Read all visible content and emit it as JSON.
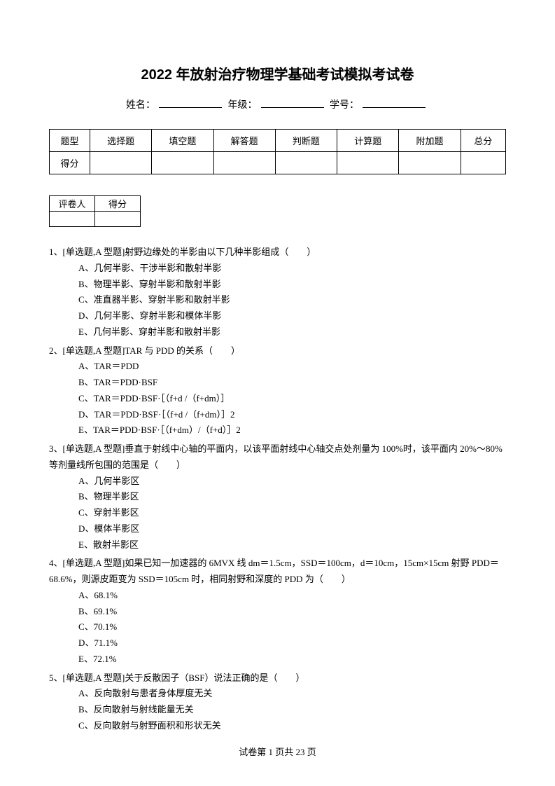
{
  "title": "2022 年放射治疗物理学基础考试模拟考试卷",
  "info": {
    "name_label": "姓名：",
    "grade_label": "年级：",
    "id_label": "学号："
  },
  "score_table": {
    "row1": [
      "题型",
      "选择题",
      "填空题",
      "解答题",
      "判断题",
      "计算题",
      "附加题",
      "总分"
    ],
    "row2_label": "得分"
  },
  "grader_table": {
    "col1": "评卷人",
    "col2": "得分"
  },
  "questions": [
    {
      "stem": "1、[单选题,A 型题]射野边缘处的半影由以下几种半影组成（　　）",
      "options": [
        "A、几何半影、干涉半影和散射半影",
        "B、物理半影、穿射半影和散射半影",
        "C、准直器半影、穿射半影和散射半影",
        "D、几何半影、穿射半影和模体半影",
        "E、几何半影、穿射半影和散射半影"
      ]
    },
    {
      "stem": "2、[单选题,A 型题]TAR 与 PDD 的关系（　　）",
      "options": [
        "A、TAR＝PDD",
        "B、TAR＝PDD·BSF",
        "C、TAR＝PDD·BSF·［（f+d /（f+dm）］",
        "D、TAR＝PDD·BSF·［（f+d /（f+dm）］2",
        "E、TAR＝PDD·BSF·［（f+dm）/（f+d）］2"
      ]
    },
    {
      "stem": "3、[单选题,A 型题]垂直于射线中心轴的平面内，以该平面射线中心轴交点处剂量为 100%时，该平面内 20%～80%等剂量线所包围的范围是（　　）",
      "options": [
        "A、几何半影区",
        "B、物理半影区",
        "C、穿射半影区",
        "D、模体半影区",
        "E、散射半影区"
      ]
    },
    {
      "stem": "4、[单选题,A 型题]如果已知一加速器的 6MVX 线 dm＝1.5cm，SSD＝100cm，d＝10cm，15cm×15cm 射野 PDD＝68.6%，则源皮距变为 SSD＝105cm 时，相同射野和深度的 PDD 为（　　）",
      "options": [
        "A、68.1%",
        "B、69.1%",
        "C、70.1%",
        "D、71.1%",
        "E、72.1%"
      ]
    },
    {
      "stem": "5、[单选题,A 型题]关于反散因子（BSF）说法正确的是（　　）",
      "options": [
        "A、反向散射与患者身体厚度无关",
        "B、反向散射与射线能量无关",
        "C、反向散射与射野面积和形状无关"
      ]
    }
  ],
  "footer": "试卷第 1 页共 23 页"
}
